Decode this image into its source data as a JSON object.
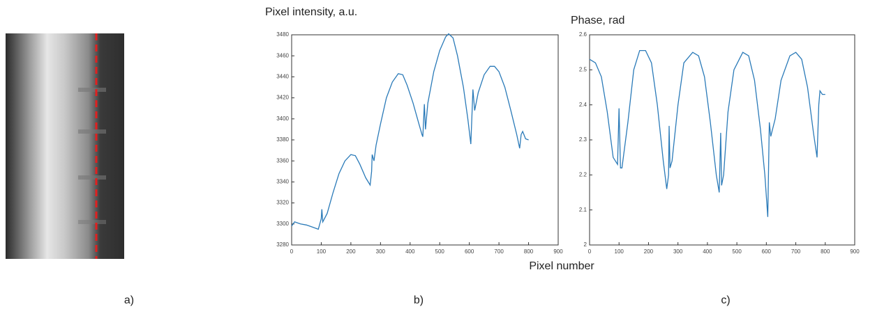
{
  "image_panel": {
    "label": "a)"
  },
  "chart_data": [
    {
      "type": "line",
      "title": "Pixel intensity, a.u.",
      "panel_label": "b)",
      "xlabel": "Pixel number",
      "color": "#2a7ab8",
      "xlim": [
        0,
        900
      ],
      "xticks": [
        0,
        100,
        200,
        300,
        400,
        500,
        600,
        700,
        800,
        900
      ],
      "ylim": [
        3280,
        3480
      ],
      "yticks": [
        3280,
        3300,
        3320,
        3340,
        3360,
        3380,
        3400,
        3420,
        3440,
        3460,
        3480
      ],
      "x": [
        0,
        10,
        30,
        50,
        70,
        90,
        100,
        102,
        105,
        120,
        140,
        160,
        180,
        200,
        215,
        230,
        250,
        265,
        270,
        272,
        278,
        285,
        300,
        320,
        340,
        360,
        375,
        390,
        410,
        430,
        440,
        443,
        448,
        452,
        460,
        480,
        500,
        520,
        530,
        545,
        560,
        580,
        595,
        605,
        610,
        612,
        618,
        630,
        650,
        670,
        685,
        700,
        720,
        740,
        760,
        770,
        775,
        780,
        790,
        800
      ],
      "values": [
        3298,
        3302,
        3300,
        3299,
        3297,
        3295,
        3305,
        3314,
        3302,
        3310,
        3330,
        3348,
        3360,
        3366,
        3365,
        3357,
        3344,
        3337,
        3350,
        3366,
        3360,
        3375,
        3395,
        3420,
        3435,
        3443,
        3442,
        3432,
        3415,
        3395,
        3385,
        3383,
        3414,
        3390,
        3415,
        3445,
        3465,
        3478,
        3481,
        3477,
        3460,
        3430,
        3400,
        3376,
        3412,
        3428,
        3408,
        3425,
        3442,
        3450,
        3450,
        3445,
        3430,
        3408,
        3385,
        3372,
        3385,
        3388,
        3381,
        3380
      ]
    },
    {
      "type": "line",
      "title": "Phase, rad",
      "panel_label": "c)",
      "color": "#2a7ab8",
      "xlim": [
        0,
        900
      ],
      "xticks": [
        0,
        100,
        200,
        300,
        400,
        500,
        600,
        700,
        800,
        900
      ],
      "ylim": [
        2,
        2.6
      ],
      "yticks": [
        2,
        2.1,
        2.2,
        2.3,
        2.4,
        2.5,
        2.6
      ],
      "x": [
        0,
        20,
        40,
        60,
        80,
        95,
        100,
        105,
        110,
        130,
        150,
        170,
        190,
        210,
        230,
        250,
        262,
        268,
        270,
        273,
        280,
        300,
        320,
        350,
        370,
        390,
        410,
        430,
        440,
        445,
        448,
        455,
        470,
        490,
        520,
        540,
        560,
        580,
        595,
        605,
        610,
        615,
        630,
        650,
        680,
        700,
        720,
        740,
        760,
        772,
        778,
        782,
        790,
        800
      ],
      "values": [
        2.53,
        2.52,
        2.48,
        2.38,
        2.25,
        2.23,
        2.39,
        2.22,
        2.22,
        2.35,
        2.5,
        2.555,
        2.555,
        2.52,
        2.4,
        2.24,
        2.16,
        2.2,
        2.34,
        2.22,
        2.24,
        2.4,
        2.52,
        2.55,
        2.54,
        2.48,
        2.35,
        2.2,
        2.15,
        2.32,
        2.17,
        2.2,
        2.38,
        2.5,
        2.55,
        2.54,
        2.47,
        2.33,
        2.2,
        2.08,
        2.35,
        2.31,
        2.36,
        2.47,
        2.54,
        2.55,
        2.53,
        2.45,
        2.32,
        2.25,
        2.4,
        2.44,
        2.43,
        2.43
      ]
    }
  ]
}
